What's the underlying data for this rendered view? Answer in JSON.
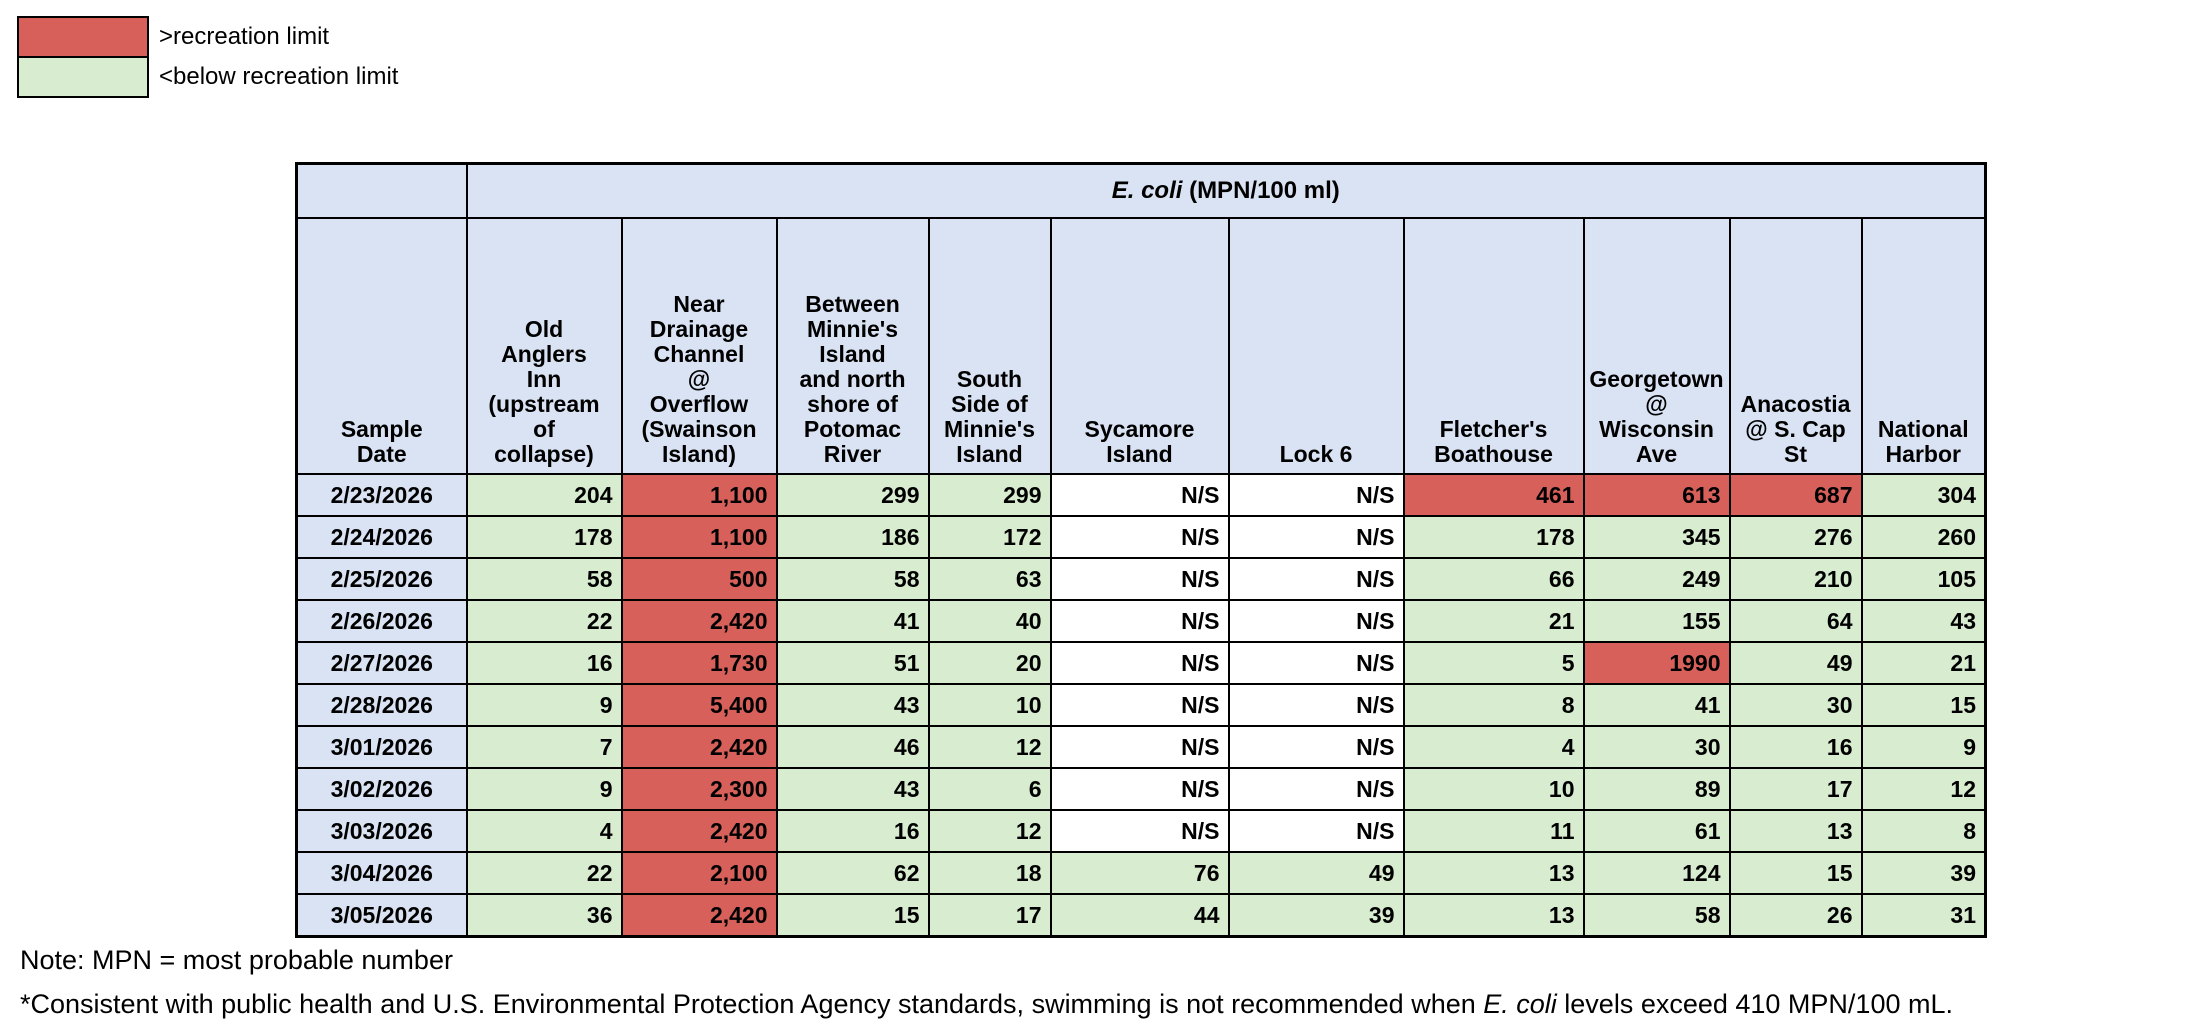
{
  "legend": {
    "items": [
      {
        "label": ">recreation limit",
        "status": "above_limit"
      },
      {
        "label": "<below recreation limit",
        "status": "below_limit"
      }
    ]
  },
  "colors": {
    "above_limit": "#d7605b",
    "below_limit": "#d8ecd0",
    "not_sampled": "#ffffff",
    "header_blue": "#dae3f3"
  },
  "table": {
    "unit_title": {
      "italic": "E. coli",
      "rest": " (MPN/100 ml)"
    },
    "row_header": "Sample\nDate",
    "site_columns": [
      "Old\nAnglers\nInn\n(upstream\nof\ncollapse)",
      "Near\nDrainage\nChannel\n@\nOverflow\n(Swainson\nIsland)",
      "Between\nMinnie's\nIsland\nand north\nshore of\nPotomac\nRiver",
      "South\nSide of\nMinnie's\nIsland",
      "Sycamore\nIsland",
      "Lock 6",
      "Fletcher's\nBoathouse",
      "Georgetown\n@\nWisconsin\nAve",
      "Anacostia\n@ S. Cap\nSt",
      "National\nHarbor"
    ],
    "rows": [
      {
        "date": "2/23/2026",
        "cells": [
          {
            "text": "204",
            "status": "below"
          },
          {
            "text": "1,100",
            "status": "above"
          },
          {
            "text": "299",
            "status": "below"
          },
          {
            "text": "299",
            "status": "below"
          },
          {
            "text": "N/S",
            "status": "ns"
          },
          {
            "text": "N/S",
            "status": "ns"
          },
          {
            "text": "461",
            "status": "above"
          },
          {
            "text": "613",
            "status": "above"
          },
          {
            "text": "687",
            "status": "above"
          },
          {
            "text": "304",
            "status": "below"
          }
        ]
      },
      {
        "date": "2/24/2026",
        "cells": [
          {
            "text": "178",
            "status": "below"
          },
          {
            "text": "1,100",
            "status": "above"
          },
          {
            "text": "186",
            "status": "below"
          },
          {
            "text": "172",
            "status": "below"
          },
          {
            "text": "N/S",
            "status": "ns"
          },
          {
            "text": "N/S",
            "status": "ns"
          },
          {
            "text": "178",
            "status": "below"
          },
          {
            "text": "345",
            "status": "below"
          },
          {
            "text": "276",
            "status": "below"
          },
          {
            "text": "260",
            "status": "below"
          }
        ]
      },
      {
        "date": "2/25/2026",
        "cells": [
          {
            "text": "58",
            "status": "below"
          },
          {
            "text": "500",
            "status": "above"
          },
          {
            "text": "58",
            "status": "below"
          },
          {
            "text": "63",
            "status": "below"
          },
          {
            "text": "N/S",
            "status": "ns"
          },
          {
            "text": "N/S",
            "status": "ns"
          },
          {
            "text": "66",
            "status": "below"
          },
          {
            "text": "249",
            "status": "below"
          },
          {
            "text": "210",
            "status": "below"
          },
          {
            "text": "105",
            "status": "below"
          }
        ]
      },
      {
        "date": "2/26/2026",
        "cells": [
          {
            "text": "22",
            "status": "below"
          },
          {
            "text": "2,420",
            "status": "above"
          },
          {
            "text": "41",
            "status": "below"
          },
          {
            "text": "40",
            "status": "below"
          },
          {
            "text": "N/S",
            "status": "ns"
          },
          {
            "text": "N/S",
            "status": "ns"
          },
          {
            "text": "21",
            "status": "below"
          },
          {
            "text": "155",
            "status": "below"
          },
          {
            "text": "64",
            "status": "below"
          },
          {
            "text": "43",
            "status": "below"
          }
        ]
      },
      {
        "date": "2/27/2026",
        "cells": [
          {
            "text": "16",
            "status": "below"
          },
          {
            "text": "1,730",
            "status": "above"
          },
          {
            "text": "51",
            "status": "below"
          },
          {
            "text": "20",
            "status": "below"
          },
          {
            "text": "N/S",
            "status": "ns"
          },
          {
            "text": "N/S",
            "status": "ns"
          },
          {
            "text": "5",
            "status": "below"
          },
          {
            "text": "1990",
            "status": "above"
          },
          {
            "text": "49",
            "status": "below"
          },
          {
            "text": "21",
            "status": "below"
          }
        ]
      },
      {
        "date": "2/28/2026",
        "cells": [
          {
            "text": "9",
            "status": "below"
          },
          {
            "text": "5,400",
            "status": "above"
          },
          {
            "text": "43",
            "status": "below"
          },
          {
            "text": "10",
            "status": "below"
          },
          {
            "text": "N/S",
            "status": "ns"
          },
          {
            "text": "N/S",
            "status": "ns"
          },
          {
            "text": "8",
            "status": "below"
          },
          {
            "text": "41",
            "status": "below"
          },
          {
            "text": "30",
            "status": "below"
          },
          {
            "text": "15",
            "status": "below"
          }
        ]
      },
      {
        "date": "3/01/2026",
        "cells": [
          {
            "text": "7",
            "status": "below"
          },
          {
            "text": "2,420",
            "status": "above"
          },
          {
            "text": "46",
            "status": "below"
          },
          {
            "text": "12",
            "status": "below"
          },
          {
            "text": "N/S",
            "status": "ns"
          },
          {
            "text": "N/S",
            "status": "ns"
          },
          {
            "text": "4",
            "status": "below"
          },
          {
            "text": "30",
            "status": "below"
          },
          {
            "text": "16",
            "status": "below"
          },
          {
            "text": "9",
            "status": "below"
          }
        ]
      },
      {
        "date": "3/02/2026",
        "cells": [
          {
            "text": "9",
            "status": "below"
          },
          {
            "text": "2,300",
            "status": "above"
          },
          {
            "text": "43",
            "status": "below"
          },
          {
            "text": "6",
            "status": "below"
          },
          {
            "text": "N/S",
            "status": "ns"
          },
          {
            "text": "N/S",
            "status": "ns"
          },
          {
            "text": "10",
            "status": "below"
          },
          {
            "text": "89",
            "status": "below"
          },
          {
            "text": "17",
            "status": "below"
          },
          {
            "text": "12",
            "status": "below"
          }
        ]
      },
      {
        "date": "3/03/2026",
        "cells": [
          {
            "text": "4",
            "status": "below"
          },
          {
            "text": "2,420",
            "status": "above"
          },
          {
            "text": "16",
            "status": "below"
          },
          {
            "text": "12",
            "status": "below"
          },
          {
            "text": "N/S",
            "status": "ns"
          },
          {
            "text": "N/S",
            "status": "ns"
          },
          {
            "text": "11",
            "status": "below"
          },
          {
            "text": "61",
            "status": "below"
          },
          {
            "text": "13",
            "status": "below"
          },
          {
            "text": "8",
            "status": "below"
          }
        ]
      },
      {
        "date": "3/04/2026",
        "cells": [
          {
            "text": "22",
            "status": "below"
          },
          {
            "text": "2,100",
            "status": "above"
          },
          {
            "text": "62",
            "status": "below"
          },
          {
            "text": "18",
            "status": "below"
          },
          {
            "text": "76",
            "status": "below"
          },
          {
            "text": "49",
            "status": "below"
          },
          {
            "text": "13",
            "status": "below"
          },
          {
            "text": "124",
            "status": "below"
          },
          {
            "text": "15",
            "status": "below"
          },
          {
            "text": "39",
            "status": "below"
          }
        ]
      },
      {
        "date": "3/05/2026",
        "cells": [
          {
            "text": "36",
            "status": "below"
          },
          {
            "text": "2,420",
            "status": "above"
          },
          {
            "text": "15",
            "status": "below"
          },
          {
            "text": "17",
            "status": "below"
          },
          {
            "text": "44",
            "status": "below"
          },
          {
            "text": "39",
            "status": "below"
          },
          {
            "text": "13",
            "status": "below"
          },
          {
            "text": "58",
            "status": "below"
          },
          {
            "text": "26",
            "status": "below"
          },
          {
            "text": "31",
            "status": "below"
          }
        ]
      }
    ]
  },
  "notes": {
    "line1": "Note: MPN = most probable number",
    "line2_before": "*Consistent with public health and U.S. Environmental Protection Agency standards, swimming is not recommended when ",
    "line2_italic": "E. coli",
    "line2_after": " levels exceed 410 MPN/100 mL."
  }
}
